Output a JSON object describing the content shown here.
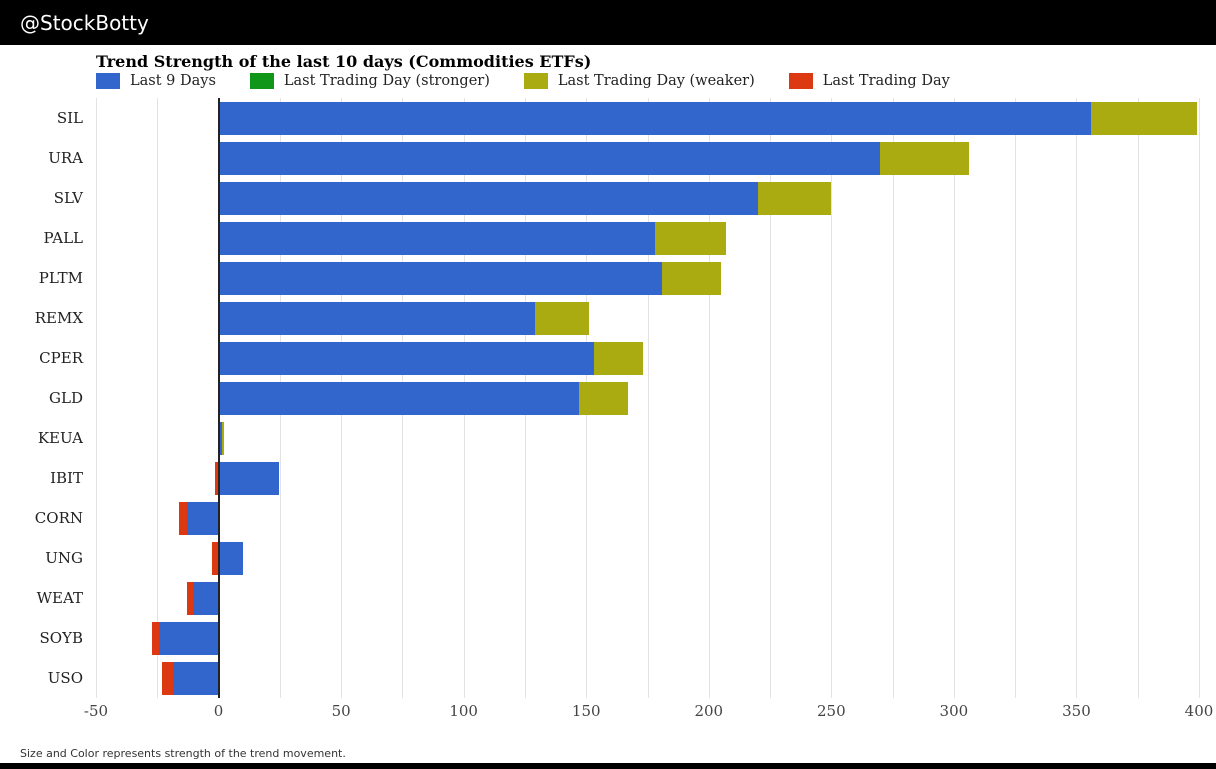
{
  "header": {
    "handle": "@StockBotty"
  },
  "chart": {
    "title": "Trend Strength of the last 10 days (Commodities ETFs)",
    "footnote": "Size and Color represents strength of the trend movement."
  },
  "chart_data": {
    "type": "bar",
    "orientation": "horizontal",
    "title": "Trend Strength of the last 10 days (Commodities ETFs)",
    "xlim": [
      -50,
      400
    ],
    "xticks": [
      -50,
      0,
      50,
      100,
      150,
      200,
      250,
      300,
      350,
      400
    ],
    "grid_minor_step": 25,
    "legend_position": "top",
    "colors": {
      "last9": "#3366cc",
      "stronger": "#109618",
      "weaker": "#aaaa11",
      "last": "#dc3912"
    },
    "legend": [
      {
        "key": "last9",
        "label": "Last 9 Days"
      },
      {
        "key": "stronger",
        "label": "Last Trading Day (stronger)"
      },
      {
        "key": "weaker",
        "label": "Last Trading Day (weaker)"
      },
      {
        "key": "last",
        "label": "Last Trading Day"
      }
    ],
    "categories": [
      "SIL",
      "URA",
      "SLV",
      "PALL",
      "PLTM",
      "REMX",
      "CPER",
      "GLD",
      "KEUA",
      "IBIT",
      "CORN",
      "UNG",
      "WEAT",
      "SOYB",
      "USO"
    ],
    "series": [
      {
        "name": "Last 9 Days",
        "values": [
          356,
          270,
          220,
          178,
          181,
          129,
          153,
          147,
          1.5,
          24.5,
          -13,
          10,
          -10.4,
          -24.5,
          -18.7
        ]
      },
      {
        "name": "Last Trading Day (stronger)",
        "values": [
          0,
          0,
          0,
          0,
          0,
          0,
          0,
          0,
          0,
          0,
          0,
          0,
          0,
          0,
          0
        ]
      },
      {
        "name": "Last Trading Day (weaker)",
        "values": [
          43,
          36,
          30,
          29,
          24,
          22,
          20,
          20,
          0.7,
          0,
          0,
          0,
          0,
          0,
          0
        ]
      },
      {
        "name": "Last Trading Day",
        "values": [
          0,
          0,
          0,
          0,
          0,
          0,
          0,
          0,
          0,
          -1.3,
          -3,
          -2.6,
          -2.6,
          -2.5,
          -4.3
        ]
      }
    ],
    "rows": [
      {
        "label": "SIL",
        "segments": [
          {
            "key": "last9",
            "from": 0,
            "to": 356
          },
          {
            "key": "weaker",
            "from": 356,
            "to": 399
          }
        ]
      },
      {
        "label": "URA",
        "segments": [
          {
            "key": "last9",
            "from": 0,
            "to": 270
          },
          {
            "key": "weaker",
            "from": 270,
            "to": 306
          }
        ]
      },
      {
        "label": "SLV",
        "segments": [
          {
            "key": "last9",
            "from": 0,
            "to": 220
          },
          {
            "key": "weaker",
            "from": 220,
            "to": 250
          }
        ]
      },
      {
        "label": "PALL",
        "segments": [
          {
            "key": "last9",
            "from": 0,
            "to": 178
          },
          {
            "key": "weaker",
            "from": 178,
            "to": 207
          }
        ]
      },
      {
        "label": "PLTM",
        "segments": [
          {
            "key": "last9",
            "from": 0,
            "to": 181
          },
          {
            "key": "weaker",
            "from": 181,
            "to": 205
          }
        ]
      },
      {
        "label": "REMX",
        "segments": [
          {
            "key": "last9",
            "from": 0,
            "to": 129
          },
          {
            "key": "weaker",
            "from": 129,
            "to": 151
          }
        ]
      },
      {
        "label": "CPER",
        "segments": [
          {
            "key": "last9",
            "from": 0,
            "to": 153
          },
          {
            "key": "weaker",
            "from": 153,
            "to": 173
          }
        ]
      },
      {
        "label": "GLD",
        "segments": [
          {
            "key": "last9",
            "from": 0,
            "to": 147
          },
          {
            "key": "weaker",
            "from": 147,
            "to": 167
          }
        ]
      },
      {
        "label": "KEUA",
        "segments": [
          {
            "key": "last9",
            "from": 0,
            "to": 1.5
          },
          {
            "key": "weaker",
            "from": 1.5,
            "to": 2.2
          }
        ]
      },
      {
        "label": "IBIT",
        "segments": [
          {
            "key": "last",
            "from": -1.3,
            "to": 0
          },
          {
            "key": "last9",
            "from": 0,
            "to": 24.5
          }
        ]
      },
      {
        "label": "CORN",
        "segments": [
          {
            "key": "last",
            "from": -16,
            "to": -13
          },
          {
            "key": "last9",
            "from": -13,
            "to": 0
          }
        ]
      },
      {
        "label": "UNG",
        "segments": [
          {
            "key": "last",
            "from": -2.6,
            "to": 0
          },
          {
            "key": "last9",
            "from": 0,
            "to": 10
          }
        ]
      },
      {
        "label": "WEAT",
        "segments": [
          {
            "key": "last",
            "from": -13,
            "to": -10.4
          },
          {
            "key": "last9",
            "from": -10.4,
            "to": 0
          }
        ]
      },
      {
        "label": "SOYB",
        "segments": [
          {
            "key": "last",
            "from": -27,
            "to": -24.5
          },
          {
            "key": "last9",
            "from": -24.5,
            "to": 0
          }
        ]
      },
      {
        "label": "USO",
        "segments": [
          {
            "key": "last",
            "from": -23,
            "to": -18.7
          },
          {
            "key": "last9",
            "from": -18.7,
            "to": 0
          }
        ]
      }
    ]
  }
}
